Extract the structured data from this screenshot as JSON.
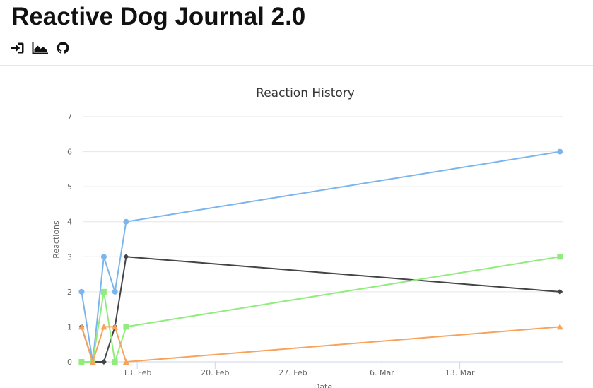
{
  "app": {
    "title": "Reactive Dog Journal 2.0"
  },
  "nav": {
    "icons": [
      "sign-in-icon",
      "area-chart-icon",
      "github-icon"
    ]
  },
  "chart_data": {
    "type": "line",
    "title": "Reaction History",
    "xlabel": "Date",
    "ylabel": "Reactions",
    "ylim": [
      0,
      7
    ],
    "yticks": [
      0,
      1,
      2,
      3,
      4,
      5,
      6,
      7
    ],
    "xlim": [
      "2020-02-08",
      "2020-03-23"
    ],
    "xticks": [
      {
        "date": "2020-02-13",
        "label": "13. Feb"
      },
      {
        "date": "2020-02-20",
        "label": "20. Feb"
      },
      {
        "date": "2020-02-27",
        "label": "27. Feb"
      },
      {
        "date": "2020-03-06",
        "label": "6. Mar"
      },
      {
        "date": "2020-03-13",
        "label": "13. Mar"
      }
    ],
    "x": [
      "2020-02-08",
      "2020-02-09",
      "2020-02-10",
      "2020-02-11",
      "2020-02-12",
      "2020-03-22"
    ],
    "grid": true,
    "legend": "none",
    "series": [
      {
        "color": "#7cb5ec",
        "marker": "circle",
        "values": [
          2,
          0,
          3,
          2,
          4,
          6
        ]
      },
      {
        "color": "#434348",
        "marker": "diamond",
        "values": [
          1,
          0,
          0,
          1,
          3,
          2
        ]
      },
      {
        "color": "#90ed7d",
        "marker": "square",
        "values": [
          0,
          0,
          2,
          0,
          1,
          3
        ]
      },
      {
        "color": "#f7a35c",
        "marker": "triangle",
        "values": [
          1,
          0,
          1,
          1,
          0,
          1
        ]
      }
    ]
  }
}
